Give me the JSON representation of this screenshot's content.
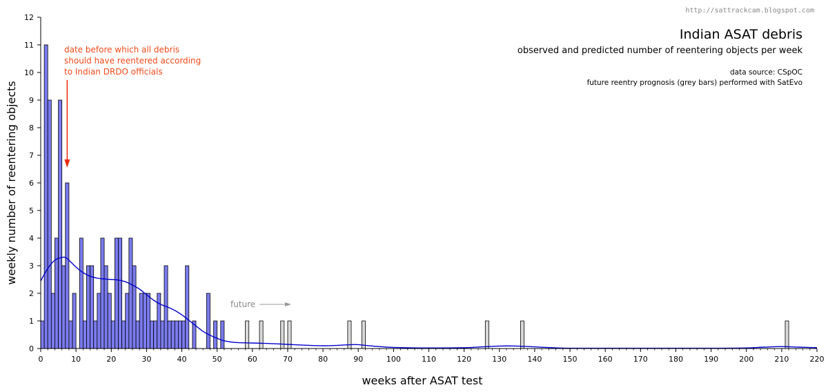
{
  "watermark": "http://sattrackcam.blogspot.com",
  "chart_data": {
    "type": "bar",
    "title": "Indian ASAT debris",
    "subtitle": "observed and predicted number of reentering objects per week",
    "source_line1": "data source:   CSpOC",
    "source_line2": "future reentry prognosis (grey bars) performed with SatEvo",
    "annotation_line1": "date before which all debris",
    "annotation_line2": "should have reentered according",
    "annotation_line3": "to Indian DRDO officials",
    "annotation_x": 7.5,
    "future_label": "future",
    "xlabel": "weeks after ASAT test",
    "ylabel": "weekly number of reentering objects",
    "xlim": [
      0,
      220
    ],
    "ylim": [
      0,
      12
    ],
    "xticks": [
      0,
      10,
      20,
      30,
      40,
      50,
      60,
      70,
      80,
      90,
      100,
      110,
      120,
      130,
      140,
      150,
      160,
      170,
      180,
      190,
      200,
      210,
      220
    ],
    "yticks": [
      0,
      1,
      2,
      3,
      4,
      5,
      6,
      7,
      8,
      9,
      10,
      11,
      12
    ],
    "grid": false,
    "colors": {
      "observed": "#7b7bef",
      "predicted": "#d9d9d9",
      "curve": "#0000cc",
      "annotation": "#f04a1a",
      "arrow": "#e82a10"
    },
    "series": [
      {
        "name": "observed",
        "bins": [
          [
            0,
            1
          ],
          [
            1,
            11
          ],
          [
            2,
            9
          ],
          [
            3,
            2
          ],
          [
            4,
            4
          ],
          [
            5,
            9
          ],
          [
            6,
            3
          ],
          [
            7,
            6
          ],
          [
            8,
            1
          ],
          [
            9,
            2
          ],
          [
            11,
            4
          ],
          [
            12,
            1
          ],
          [
            13,
            3
          ],
          [
            14,
            3
          ],
          [
            15,
            1
          ],
          [
            16,
            2
          ],
          [
            17,
            4
          ],
          [
            18,
            3
          ],
          [
            19,
            2
          ],
          [
            20,
            1
          ],
          [
            21,
            4
          ],
          [
            22,
            4
          ],
          [
            23,
            1
          ],
          [
            24,
            2
          ],
          [
            25,
            4
          ],
          [
            26,
            3
          ],
          [
            27,
            1
          ],
          [
            28,
            2
          ],
          [
            29,
            2
          ],
          [
            30,
            2
          ],
          [
            31,
            1
          ],
          [
            32,
            1
          ],
          [
            33,
            2
          ],
          [
            34,
            1
          ],
          [
            35,
            3
          ],
          [
            36,
            1
          ],
          [
            37,
            1
          ],
          [
            38,
            1
          ],
          [
            39,
            1
          ],
          [
            40,
            1
          ],
          [
            41,
            3
          ],
          [
            43,
            1
          ],
          [
            47,
            2
          ],
          [
            49,
            1
          ],
          [
            51,
            1
          ]
        ]
      },
      {
        "name": "predicted",
        "bins": [
          [
            58,
            1
          ],
          [
            62,
            1
          ],
          [
            68,
            1
          ],
          [
            70,
            1
          ],
          [
            87,
            1
          ],
          [
            91,
            1
          ],
          [
            126,
            1
          ],
          [
            136,
            1
          ],
          [
            211,
            1
          ]
        ]
      }
    ],
    "smoothed_curve": {
      "x": [
        0,
        2,
        4,
        6,
        7,
        8,
        10,
        12,
        14,
        16,
        18,
        20,
        22,
        24,
        26,
        28,
        30,
        32,
        34,
        36,
        38,
        40,
        42,
        44,
        46,
        48,
        50,
        52,
        55,
        60,
        65,
        70,
        75,
        80,
        85,
        88,
        90,
        95,
        100,
        110,
        120,
        125,
        130,
        135,
        140,
        145,
        150,
        160,
        170,
        180,
        190,
        200,
        205,
        210,
        215,
        220
      ],
      "y": [
        2.45,
        2.9,
        3.2,
        3.3,
        3.3,
        3.2,
        2.95,
        2.75,
        2.62,
        2.55,
        2.52,
        2.5,
        2.48,
        2.42,
        2.3,
        2.15,
        1.95,
        1.75,
        1.6,
        1.5,
        1.38,
        1.22,
        1.02,
        0.82,
        0.62,
        0.48,
        0.37,
        0.28,
        0.22,
        0.2,
        0.18,
        0.15,
        0.12,
        0.1,
        0.12,
        0.14,
        0.14,
        0.08,
        0.04,
        0.02,
        0.03,
        0.06,
        0.09,
        0.09,
        0.06,
        0.03,
        0.01,
        0.01,
        0.01,
        0.01,
        0.01,
        0.02,
        0.05,
        0.07,
        0.05,
        0.03
      ]
    }
  }
}
